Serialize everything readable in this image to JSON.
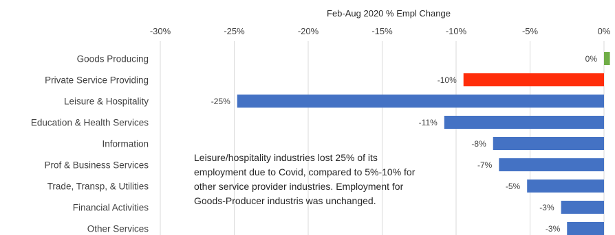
{
  "chart_data": {
    "type": "bar",
    "orientation": "horizontal",
    "title": "Feb-Aug 2020 % Empl Change",
    "xlim": [
      -30,
      0
    ],
    "xticks": [
      -30,
      -25,
      -20,
      -15,
      -10,
      -5,
      0
    ],
    "xtick_labels": [
      "-30%",
      "-25%",
      "-20%",
      "-15%",
      "-10%",
      "-5%",
      "0%"
    ],
    "x_axis_position": "top",
    "categories": [
      "Goods Producing",
      "Private Service Providing",
      "Leisure & Hospitality",
      "Education & Health Services",
      "Information",
      "Prof & Business Services",
      "Trade, Transp, & Utilities",
      "Financial Activities",
      "Other Services"
    ],
    "values": [
      0.4,
      -9.5,
      -24.8,
      -10.8,
      -7.5,
      -7.1,
      -5.2,
      -2.9,
      -2.5
    ],
    "data_labels": [
      "0%",
      "-10%",
      "-25%",
      "-11%",
      "-8%",
      "-7%",
      "-5%",
      "-3%",
      "-3%"
    ],
    "colors": [
      "#70AD47",
      "#FF2D0A",
      "#4472C4",
      "#4472C4",
      "#4472C4",
      "#4472C4",
      "#4472C4",
      "#4472C4",
      "#4472C4"
    ],
    "gridlines": true,
    "annotation": "Leisure/hospitality industries lost 25% of its employment due to Covid, compared to 5%-10% for other service provider industries. Employment for Goods-Producer industris was unchanged."
  }
}
